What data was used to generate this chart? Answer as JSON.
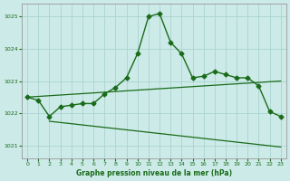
{
  "title": "Graphe pression niveau de la mer (hPa)",
  "background_color": "#cceae7",
  "grid_color": "#aad4d0",
  "line_color": "#1a6b1a",
  "ylim": [
    1020.6,
    1025.4
  ],
  "yticks": [
    1021,
    1022,
    1023,
    1024,
    1025
  ],
  "xlim": [
    -0.5,
    23.5
  ],
  "x_ticks": [
    0,
    1,
    2,
    3,
    4,
    5,
    6,
    7,
    8,
    9,
    10,
    11,
    12,
    13,
    14,
    15,
    16,
    17,
    18,
    19,
    20,
    21,
    22,
    23
  ],
  "main_line_x": [
    0,
    1,
    2,
    3,
    4,
    5,
    6,
    7,
    8,
    9,
    10,
    11,
    12,
    13,
    14,
    15,
    16,
    17,
    18,
    19,
    20,
    21,
    22,
    23
  ],
  "main_line_y": [
    1022.5,
    1022.4,
    1021.9,
    1022.2,
    1022.25,
    1022.3,
    1022.3,
    1022.6,
    1022.8,
    1023.1,
    1023.85,
    1025.0,
    1025.1,
    1024.2,
    1023.85,
    1023.1,
    1023.15,
    1023.3,
    1023.2,
    1023.1,
    1023.1,
    1022.85,
    1022.05,
    1021.9
  ],
  "upper_line_x": [
    0,
    23
  ],
  "upper_line_y": [
    1022.5,
    1023.0
  ],
  "lower_line_x": [
    2,
    23
  ],
  "lower_line_y": [
    1021.75,
    1020.95
  ]
}
